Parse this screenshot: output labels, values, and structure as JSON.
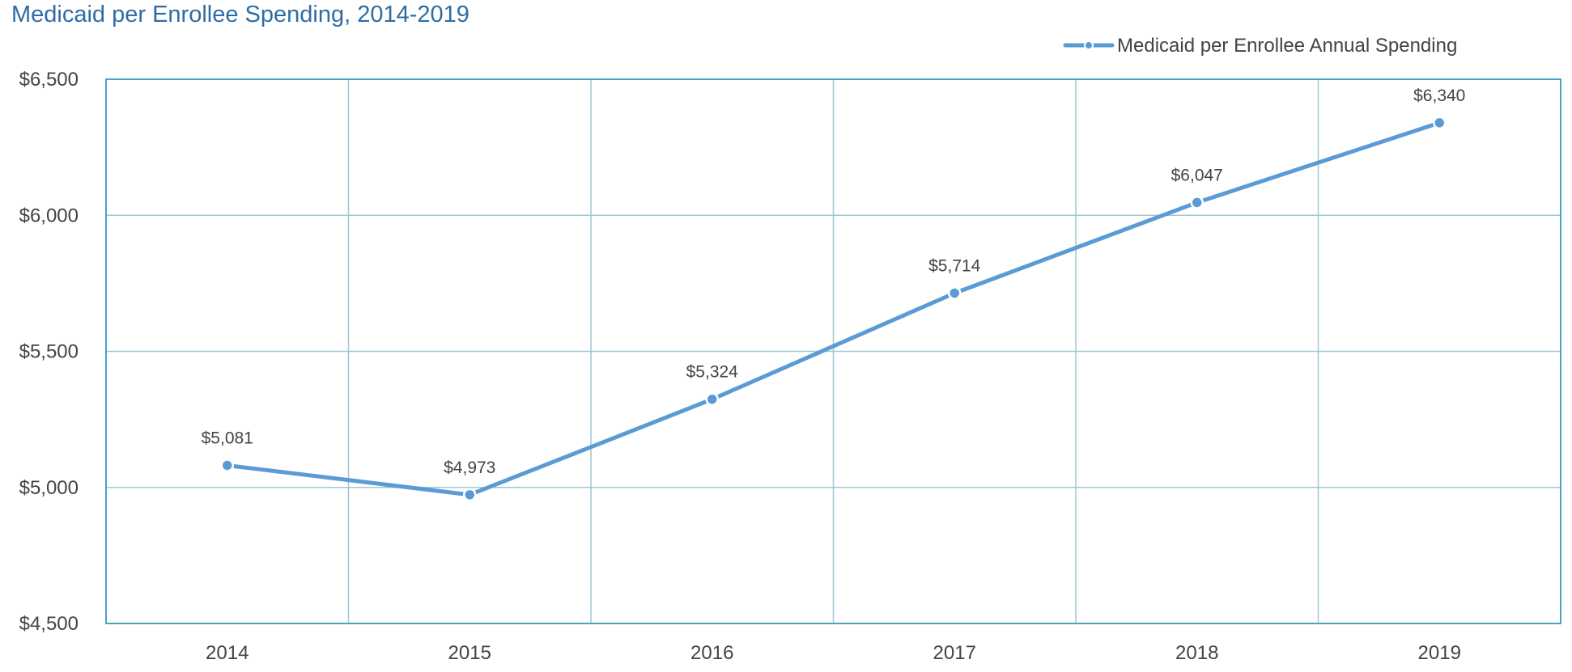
{
  "chart_data": {
    "type": "line",
    "title": "Medicaid per Enrollee Spending, 2014-2019",
    "xlabel": "",
    "ylabel": "",
    "categories": [
      "2014",
      "2015",
      "2016",
      "2017",
      "2018",
      "2019"
    ],
    "series": [
      {
        "name": "Medicaid per Enrollee Annual Spending",
        "values": [
          5081,
          4973,
          5324,
          5714,
          6047,
          6340
        ],
        "labels": [
          "$5,081",
          "$4,973",
          "$5,324",
          "$5,714",
          "$6,047",
          "$6,340"
        ],
        "color": "#5b9bd5"
      }
    ],
    "ylim": [
      4500,
      6500
    ],
    "yticks": [
      4500,
      5000,
      5500,
      6000,
      6500
    ],
    "ytick_labels": [
      "$4,500",
      "$5,000",
      "$5,500",
      "$6,000",
      "$6,500"
    ],
    "grid": true,
    "grid_color": "#9fc7d3",
    "axis_color": "#4aa3c0",
    "legend_position": "top-right"
  }
}
